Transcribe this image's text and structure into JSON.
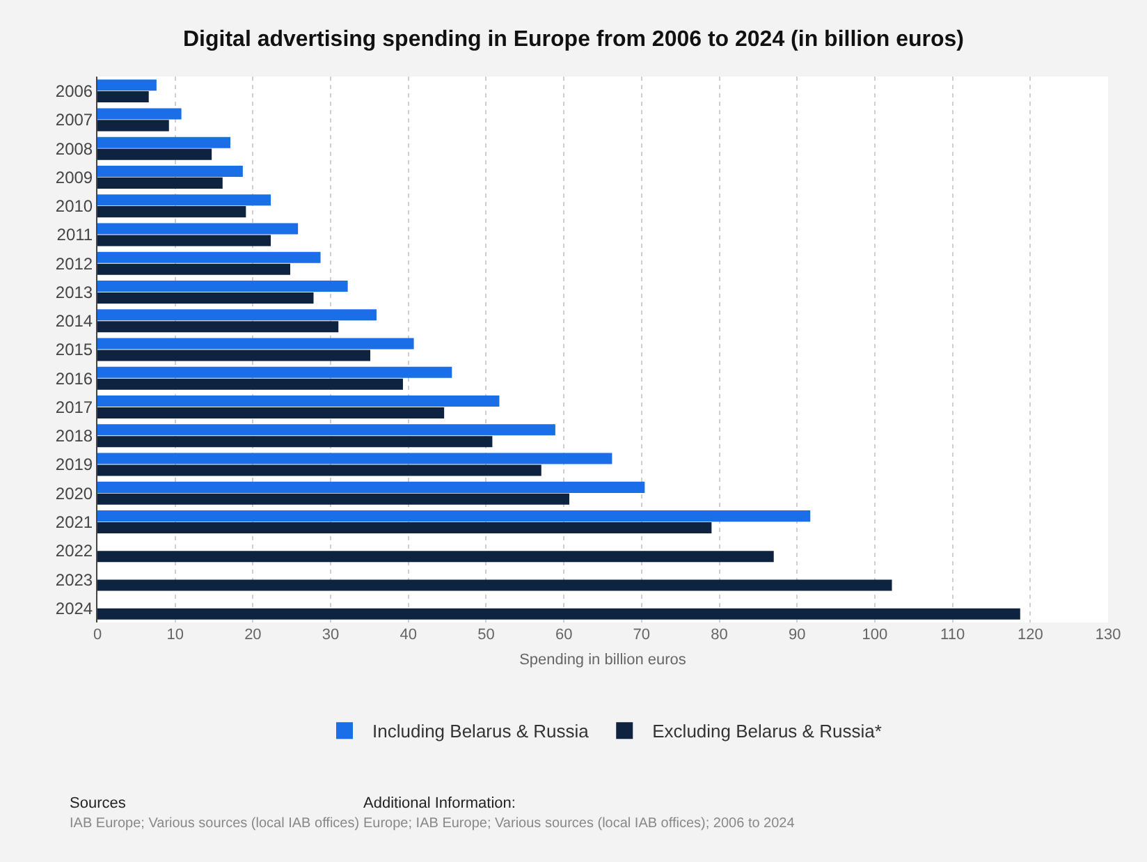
{
  "chart_data": {
    "type": "bar",
    "orientation": "horizontal",
    "title": "Digital advertising spending in Europe from 2006 to 2024 (in billion euros)",
    "xlabel": "Spending in billion euros",
    "categories": [
      "2006",
      "2007",
      "2008",
      "2009",
      "2010",
      "2011",
      "2012",
      "2013",
      "2014",
      "2015",
      "2016",
      "2017",
      "2018",
      "2019",
      "2020",
      "2021",
      "2022",
      "2023",
      "2024"
    ],
    "series": [
      {
        "name": "Including Belarus & Russia",
        "color": "#1a6ee8",
        "values": [
          7.6,
          10.8,
          17.1,
          18.7,
          22.3,
          25.8,
          28.7,
          32.2,
          35.9,
          40.7,
          45.6,
          51.7,
          58.9,
          66.2,
          70.4,
          91.7,
          null,
          null,
          null
        ]
      },
      {
        "name": "Excluding Belarus & Russia*",
        "color": "#0d2340",
        "values": [
          6.6,
          9.2,
          14.7,
          16.1,
          19.1,
          22.3,
          24.8,
          27.8,
          31.0,
          35.1,
          39.3,
          44.6,
          50.8,
          57.1,
          60.7,
          79.0,
          87.0,
          102.2,
          118.7
        ]
      }
    ],
    "xlim": [
      0,
      130
    ],
    "xticks": [
      0,
      10,
      20,
      30,
      40,
      50,
      60,
      70,
      80,
      90,
      100,
      110,
      120,
      130
    ],
    "grid": "x",
    "legend": "bottom",
    "annotations": [
      "Sources",
      "IAB Europe; Various sources (local IAB offices)",
      "Additional Information:",
      "Europe; IAB Europe; Various sources (local IAB offices); 2006 to 2024"
    ]
  }
}
